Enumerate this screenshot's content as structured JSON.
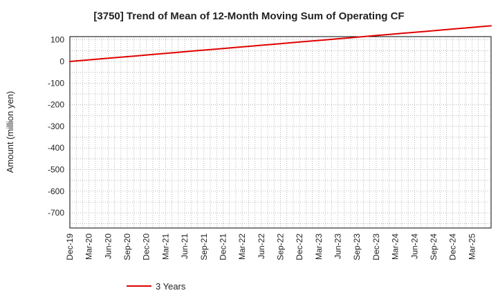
{
  "chart_data": {
    "type": "line",
    "title": "[3750]  Trend of Mean of 12-Month Moving Sum of Operating CF",
    "xlabel": "",
    "ylabel": "Amount (million yen)",
    "ylim": [
      -770,
      115
    ],
    "yticks": [
      100,
      0,
      -100,
      -200,
      -300,
      -400,
      -500,
      -600,
      -700
    ],
    "grid": true,
    "legend_position": "bottom",
    "x_tick_labels": [
      "Dec-19",
      "Mar-20",
      "Jun-20",
      "Sep-20",
      "Dec-20",
      "Mar-21",
      "Jun-21",
      "Sep-21",
      "Dec-21",
      "Mar-22",
      "Jun-22",
      "Sep-22",
      "Dec-22",
      "Mar-23",
      "Jun-23",
      "Sep-23",
      "Dec-23",
      "Mar-24",
      "Jun-24",
      "Sep-24",
      "Dec-24",
      "Mar-25"
    ],
    "x_start": "Dec-19",
    "x_unit": "months since Dec-19",
    "x_max": 66,
    "series": [
      {
        "name": "3 Years",
        "color": "#e00000",
        "x": [
          0,
          2,
          4,
          6,
          8,
          10,
          12,
          14,
          16,
          18,
          20,
          22,
          24,
          26,
          28,
          30,
          32,
          34,
          36,
          38,
          40,
          42,
          44,
          46,
          48,
          50,
          52,
          54,
          56,
          58,
          60,
          62,
          64,
          66
        ],
        "values": [
          0,
          5,
          10,
          15,
          20,
          25,
          30,
          35,
          40,
          45,
          50,
          55,
          60,
          65,
          70,
          75,
          80,
          85,
          90,
          95,
          100,
          105,
          110,
          115,
          120,
          125,
          130,
          135,
          140,
          145,
          150,
          155,
          160,
          165
        ]
      }
    ]
  }
}
